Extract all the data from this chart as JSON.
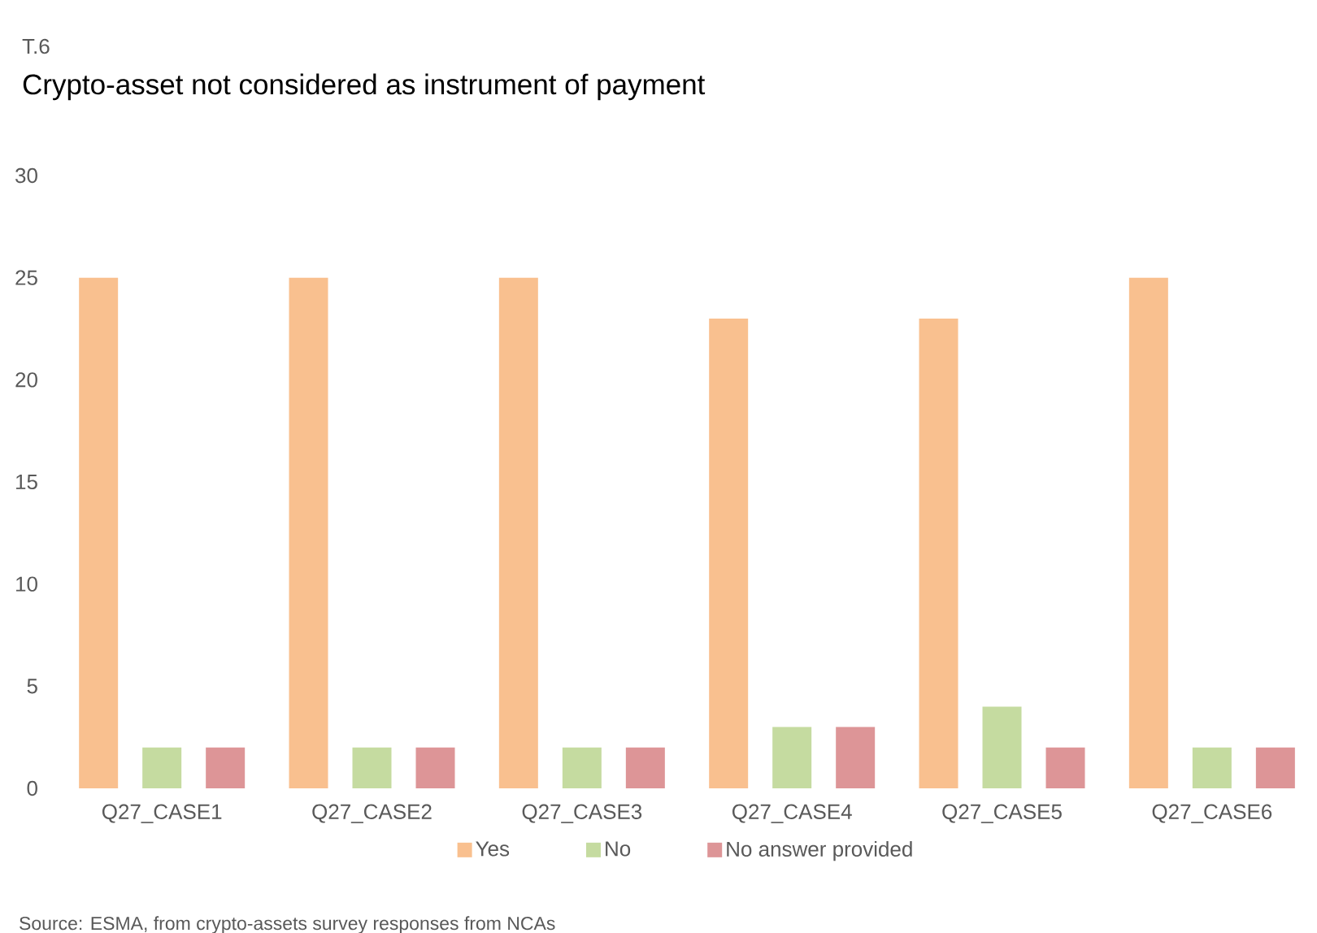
{
  "chart_data": {
    "type": "bar",
    "subtitle": "T.6",
    "title": "Crypto-asset not considered as instrument of payment",
    "categories": [
      "Q27_CASE1",
      "Q27_CASE2",
      "Q27_CASE3",
      "Q27_CASE4",
      "Q27_CASE5",
      "Q27_CASE6"
    ],
    "series": [
      {
        "name": "Yes",
        "color": "#f9c08f",
        "values": [
          25,
          25,
          25,
          23,
          23,
          25
        ]
      },
      {
        "name": "No",
        "color": "#c5dba0",
        "values": [
          2,
          2,
          2,
          3,
          4,
          2
        ]
      },
      {
        "name": "No answer provided",
        "color": "#dd9597",
        "values": [
          2,
          2,
          2,
          3,
          2,
          2
        ]
      }
    ],
    "ylim": [
      0,
      30
    ],
    "yticks": [
      0,
      5,
      10,
      15,
      20,
      25,
      30
    ],
    "legend": "bottom",
    "annotations": [
      "Source: ESMA, from crypto-assets survey responses from NCAs"
    ]
  }
}
